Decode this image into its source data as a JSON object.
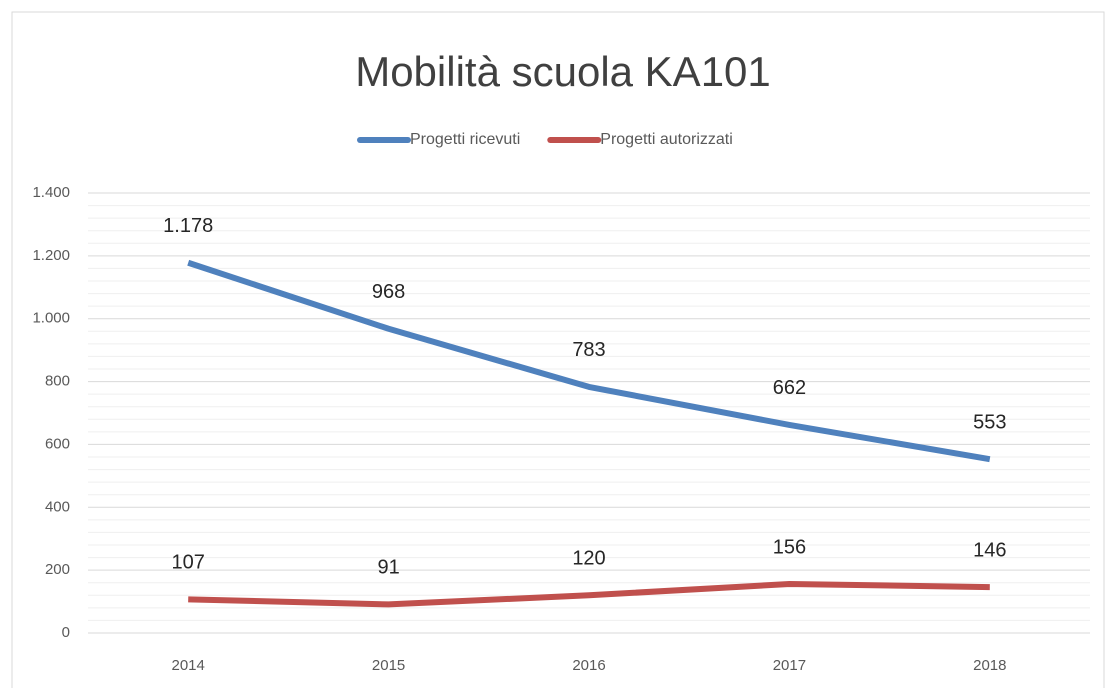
{
  "chart_data": {
    "type": "line",
    "title": "Mobilità scuola KA101",
    "categories": [
      "2014",
      "2015",
      "2016",
      "2017",
      "2018"
    ],
    "series": [
      {
        "name": "Progetti ricevuti",
        "color": "#4f81bd",
        "values": [
          1178,
          968,
          783,
          662,
          553
        ],
        "value_labels": [
          "1.178",
          "968",
          "783",
          "662",
          "553"
        ]
      },
      {
        "name": "Progetti autorizzati",
        "color": "#c0504d",
        "values": [
          107,
          91,
          120,
          156,
          146
        ]
      }
    ],
    "ylim": [
      0,
      1400
    ],
    "yticks": [
      0,
      200,
      400,
      600,
      800,
      {
        "value": 1000,
        "label": "1.000"
      },
      {
        "value": 1200,
        "label": "1.200"
      },
      {
        "value": 1400,
        "label": "1.400"
      }
    ],
    "grid": true,
    "legend": "top"
  }
}
